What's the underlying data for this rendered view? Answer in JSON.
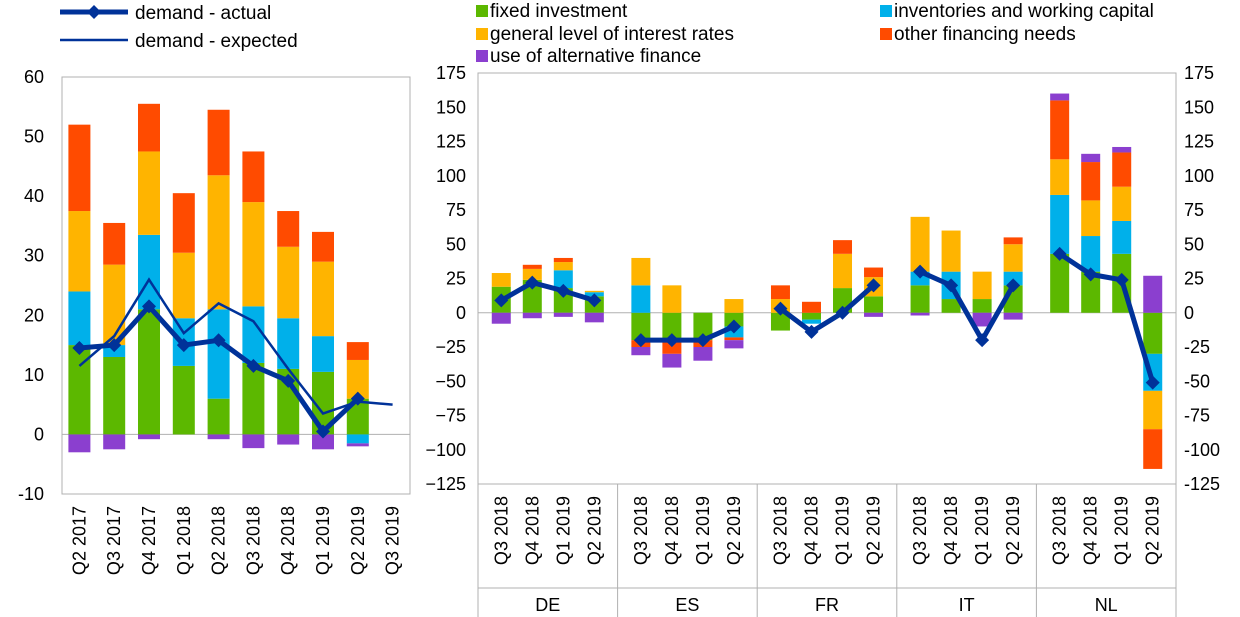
{
  "legend": {
    "actual_label": "demand - actual",
    "expected_label": "demand - expected",
    "fixed_investment": "fixed investment",
    "inventories": "inventories and working capital",
    "interest_rates": "general level of interest rates",
    "other_financing": "other financing needs",
    "alternative_finance": "use of alternative finance"
  },
  "colors": {
    "fixed_investment": "#5cb800",
    "inventories": "#00b0ea",
    "interest_rates": "#ffb400",
    "other_financing": "#ff4b00",
    "alternative_finance": "#8b3fcf",
    "line": "#003299",
    "axis": "#b0b0b0"
  },
  "chart_data": [
    {
      "type": "bar",
      "stacked": true,
      "title": "",
      "ylim": [
        -10,
        60
      ],
      "yticks": [
        -10,
        0,
        10,
        20,
        30,
        40,
        50,
        60
      ],
      "categories": [
        "Q2 2017",
        "Q3 2017",
        "Q4 2017",
        "Q1 2018",
        "Q2 2018",
        "Q3 2018",
        "Q4 2018",
        "Q1 2019",
        "Q2 2019",
        "Q3 2019"
      ],
      "series": [
        {
          "name": "fixed investment",
          "key": "fixed_investment",
          "values": [
            15,
            13,
            21,
            11.5,
            6,
            12,
            11,
            10.5,
            6,
            null
          ]
        },
        {
          "name": "inventories and working capital",
          "key": "inventories",
          "values": [
            9,
            2,
            12.5,
            8,
            15,
            9.5,
            8.5,
            6,
            -1.5,
            null
          ]
        },
        {
          "name": "general level of interest rates",
          "key": "interest_rates",
          "values": [
            13.5,
            13.5,
            14,
            11,
            22.5,
            17.5,
            12,
            12.5,
            6.5,
            null
          ]
        },
        {
          "name": "other financing needs",
          "key": "other_financing",
          "values": [
            14.5,
            7,
            8,
            10,
            11,
            8.5,
            6,
            5,
            3,
            null
          ]
        },
        {
          "name": "use of alternative finance",
          "key": "alternative_finance",
          "values": [
            -3,
            -2.5,
            -0.8,
            0,
            -0.8,
            -2.3,
            -1.7,
            -2.5,
            -0.5,
            null
          ]
        }
      ],
      "lines": [
        {
          "name": "demand - actual",
          "key": "actual",
          "markers": true,
          "values": [
            14.5,
            15,
            21.5,
            15,
            15.8,
            11.5,
            9,
            0.5,
            6,
            null
          ]
        },
        {
          "name": "demand - expected",
          "key": "expected",
          "markers": false,
          "values": [
            11.5,
            16.5,
            26,
            17,
            22,
            19,
            11,
            3.5,
            5.5,
            5
          ]
        }
      ]
    },
    {
      "type": "bar",
      "stacked": true,
      "title": "",
      "ylim": [
        -125,
        175
      ],
      "yticks": [
        -125,
        -100,
        -75,
        -50,
        -25,
        0,
        25,
        50,
        75,
        100,
        125,
        150,
        175
      ],
      "groups": [
        {
          "name": "DE",
          "categories": [
            "Q3 2018",
            "Q4 2018",
            "Q1 2019",
            "Q2 2019"
          ],
          "fixed_investment": [
            19,
            24,
            18,
            12
          ],
          "inventories": [
            0,
            0,
            13,
            3
          ],
          "interest_rates": [
            10,
            8,
            6,
            1
          ],
          "other_financing": [
            0,
            3,
            3,
            0
          ],
          "alternative_finance": [
            -8,
            -4,
            -3,
            -7
          ],
          "actual": [
            9,
            22,
            16,
            9
          ]
        },
        {
          "name": "ES",
          "categories": [
            "Q3 2018",
            "Q4 2018",
            "Q1 2019",
            "Q2 2019"
          ],
          "fixed_investment": [
            -20,
            -20,
            -20,
            -10
          ],
          "inventories": [
            20,
            0,
            0,
            -8
          ],
          "interest_rates": [
            20,
            20,
            0,
            10
          ],
          "other_financing": [
            -5,
            -10,
            -5,
            -2
          ],
          "alternative_finance": [
            -6,
            -10,
            -10,
            -6
          ],
          "actual": [
            -20,
            -20,
            -20,
            -10
          ]
        },
        {
          "name": "FR",
          "categories": [
            "Q3 2018",
            "Q4 2018",
            "Q1 2019",
            "Q2 2019"
          ],
          "fixed_investment": [
            -13,
            -5,
            18,
            12
          ],
          "inventories": [
            0,
            -3,
            0,
            0
          ],
          "interest_rates": [
            10,
            0,
            25,
            14
          ],
          "other_financing": [
            10,
            8,
            10,
            7
          ],
          "alternative_finance": [
            0,
            0,
            0,
            -3
          ],
          "actual": [
            3,
            -14,
            0,
            20
          ]
        },
        {
          "name": "IT",
          "categories": [
            "Q3 2018",
            "Q4 2018",
            "Q1 2019",
            "Q2 2019"
          ],
          "fixed_investment": [
            20,
            10,
            10,
            20
          ],
          "inventories": [
            10,
            20,
            0,
            10
          ],
          "interest_rates": [
            40,
            30,
            20,
            20
          ],
          "other_financing": [
            0,
            0,
            0,
            5
          ],
          "alternative_finance": [
            -2,
            0,
            -10,
            -5
          ],
          "actual": [
            30,
            20,
            -20,
            20
          ]
        },
        {
          "name": "NL",
          "categories": [
            "Q3 2018",
            "Q4 2018",
            "Q1 2019",
            "Q2 2019"
          ],
          "fixed_investment": [
            43,
            30,
            43,
            -30
          ],
          "inventories": [
            43,
            26,
            24,
            -27
          ],
          "interest_rates": [
            26,
            26,
            25,
            -28
          ],
          "other_financing": [
            43,
            28,
            25,
            -29
          ],
          "alternative_finance": [
            5,
            6,
            4,
            27
          ],
          "actual": [
            43,
            28,
            24,
            -51
          ]
        }
      ]
    }
  ]
}
